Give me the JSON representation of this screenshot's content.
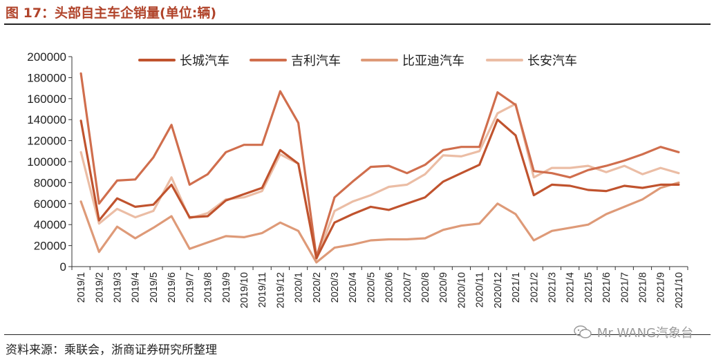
{
  "figure": {
    "title": "图 17：头部自主车企销量(单位:辆)",
    "source": "资料来源：乘联会，浙商证券研究所整理",
    "watermark": "Mr WANG汽象台",
    "watermark_icon": "wechat-icon"
  },
  "chart_data": {
    "type": "line",
    "title": "头部自主车企销量(单位:辆)",
    "xlabel": "",
    "ylabel": "",
    "ylim": [
      0,
      200000
    ],
    "yticks": [
      "0",
      "20000",
      "40000",
      "60000",
      "80000",
      "100000",
      "120000",
      "140000",
      "160000",
      "180000",
      "200000"
    ],
    "grid": false,
    "legend_position": "top",
    "categories": [
      "2019/1",
      "2019/2",
      "2019/3",
      "2019/4",
      "2019/5",
      "2019/6",
      "2019/7",
      "2019/8",
      "2019/9",
      "2019/10",
      "2019/11",
      "2019/12",
      "2020/1",
      "2020/2",
      "2020/3",
      "2020/4",
      "2020/5",
      "2020/6",
      "2020/7",
      "2020/8",
      "2020/9",
      "2020/10",
      "2020/11",
      "2020/12",
      "2021/1",
      "2021/2",
      "2021/3",
      "2021/4",
      "2021/5",
      "2021/6",
      "2021/7",
      "2021/8",
      "2021/9",
      "2021/10"
    ],
    "series": [
      {
        "name": "长城汽车",
        "color": "#c0532e",
        "values": [
          139000,
          44000,
          65000,
          57000,
          59000,
          78000,
          47000,
          48000,
          63000,
          69000,
          75000,
          111000,
          98000,
          8000,
          42000,
          50000,
          57000,
          54000,
          60000,
          66000,
          81000,
          89000,
          97000,
          140000,
          125000,
          68000,
          78000,
          77000,
          73000,
          72000,
          77000,
          75000,
          78000,
          78000
        ]
      },
      {
        "name": "吉利汽车",
        "color": "#d06e4d",
        "values": [
          184000,
          60000,
          82000,
          83000,
          104000,
          135000,
          78000,
          88000,
          109000,
          116000,
          116000,
          167000,
          137000,
          9000,
          66000,
          81000,
          95000,
          96000,
          89000,
          97000,
          111000,
          114000,
          114000,
          166000,
          154000,
          91000,
          89000,
          85000,
          92000,
          96000,
          101000,
          107000,
          114000,
          109000
        ]
      },
      {
        "name": "比亚迪汽车",
        "color": "#de9a78",
        "values": [
          62000,
          14000,
          38000,
          27000,
          37000,
          48000,
          17000,
          23000,
          29000,
          28000,
          32000,
          42000,
          34000,
          4000,
          18000,
          21000,
          25000,
          26000,
          26000,
          27000,
          35000,
          39000,
          41000,
          60000,
          50000,
          25000,
          34000,
          37000,
          40000,
          50000,
          57000,
          64000,
          75000,
          80000
        ]
      },
      {
        "name": "长安汽车",
        "color": "#ebbda5",
        "values": [
          109000,
          41000,
          55000,
          47000,
          53000,
          85000,
          46000,
          51000,
          64000,
          66000,
          72000,
          107000,
          98000,
          7000,
          53000,
          62000,
          68000,
          76000,
          78000,
          88000,
          106000,
          105000,
          110000,
          146000,
          155000,
          85000,
          94000,
          94000,
          96000,
          90000,
          96000,
          88000,
          94000,
          89000
        ]
      }
    ]
  }
}
